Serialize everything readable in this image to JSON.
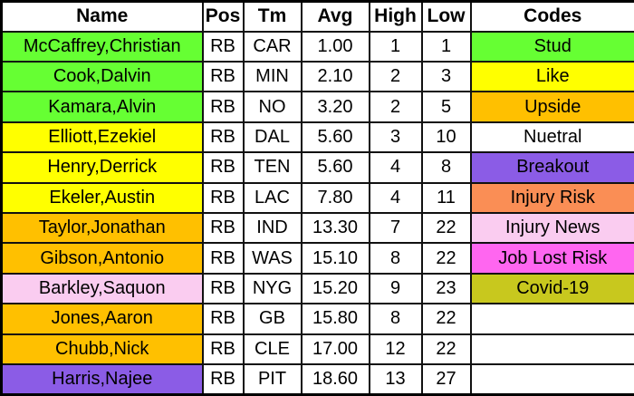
{
  "table": {
    "columns": [
      {
        "key": "name",
        "label": "Name"
      },
      {
        "key": "pos",
        "label": "Pos"
      },
      {
        "key": "tm",
        "label": "Tm"
      },
      {
        "key": "avg",
        "label": "Avg"
      },
      {
        "key": "high",
        "label": "High"
      },
      {
        "key": "low",
        "label": "Low"
      },
      {
        "key": "codes",
        "label": "Codes"
      }
    ],
    "rows": [
      {
        "name": "McCaffrey,Christian",
        "pos": "RB",
        "tm": "CAR",
        "avg": "1.00",
        "high": "1",
        "low": "1",
        "code": "Stud",
        "name_color": "#66ff33",
        "code_color": "#66ff33",
        "code_bold": true
      },
      {
        "name": "Cook,Dalvin",
        "pos": "RB",
        "tm": "MIN",
        "avg": "2.10",
        "high": "2",
        "low": "3",
        "code": "Like",
        "name_color": "#66ff33",
        "code_color": "#ffff00",
        "code_bold": true
      },
      {
        "name": "Kamara,Alvin",
        "pos": "RB",
        "tm": "NO",
        "avg": "3.20",
        "high": "2",
        "low": "5",
        "code": "Upside",
        "name_color": "#66ff33",
        "code_color": "#ffc000",
        "code_bold": true
      },
      {
        "name": "Elliott,Ezekiel",
        "pos": "RB",
        "tm": "DAL",
        "avg": "5.60",
        "high": "3",
        "low": "10",
        "code": "Nuetral",
        "name_color": "#ffff00",
        "code_color": "#ffffff",
        "code_bold": false
      },
      {
        "name": "Henry,Derrick",
        "pos": "RB",
        "tm": "TEN",
        "avg": "5.60",
        "high": "4",
        "low": "8",
        "code": "Breakout",
        "name_color": "#ffff00",
        "code_color": "#8b5ce6",
        "code_bold": true
      },
      {
        "name": "Ekeler,Austin",
        "pos": "RB",
        "tm": "LAC",
        "avg": "7.80",
        "high": "4",
        "low": "11",
        "code": "Injury Risk",
        "name_color": "#ffff00",
        "code_color": "#fa8e55",
        "code_bold": true
      },
      {
        "name": "Taylor,Jonathan",
        "pos": "RB",
        "tm": "IND",
        "avg": "13.30",
        "high": "7",
        "low": "22",
        "code": "Injury News",
        "name_color": "#ffc000",
        "code_color": "#faccf0",
        "code_bold": true
      },
      {
        "name": "Gibson,Antonio",
        "pos": "RB",
        "tm": "WAS",
        "avg": "15.10",
        "high": "8",
        "low": "22",
        "code": "Job Lost Risk",
        "name_color": "#ffc000",
        "code_color": "#ff66f0",
        "code_bold": true
      },
      {
        "name": "Barkley,Saquon",
        "pos": "RB",
        "tm": "NYG",
        "avg": "15.20",
        "high": "9",
        "low": "23",
        "code": "Covid-19",
        "name_color": "#faccf0",
        "code_color": "#c8c81e",
        "code_bold": false
      },
      {
        "name": "Jones,Aaron",
        "pos": "RB",
        "tm": "GB",
        "avg": "15.80",
        "high": "8",
        "low": "22",
        "code": "",
        "name_color": "#ffc000",
        "code_color": "#ffffff",
        "code_bold": false
      },
      {
        "name": "Chubb,Nick",
        "pos": "RB",
        "tm": "CLE",
        "avg": "17.00",
        "high": "12",
        "low": "22",
        "code": "",
        "name_color": "#ffc000",
        "code_color": "#ffffff",
        "code_bold": false
      },
      {
        "name": "Harris,Najee",
        "pos": "RB",
        "tm": "PIT",
        "avg": "18.60",
        "high": "13",
        "low": "27",
        "code": "",
        "name_color": "#8b5ce6",
        "code_color": "#ffffff",
        "code_bold": false
      }
    ]
  }
}
